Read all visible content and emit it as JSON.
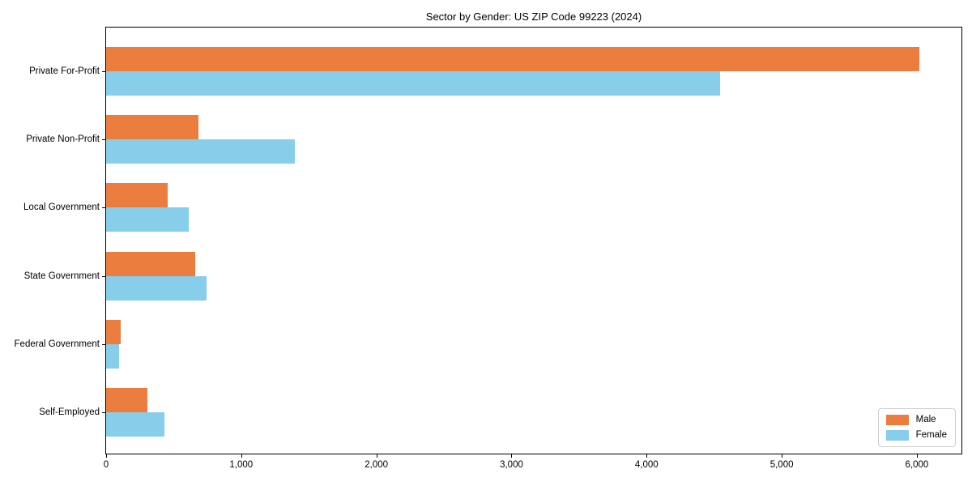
{
  "chart_data": {
    "type": "bar",
    "orientation": "horizontal",
    "title": "Sector by Gender: US ZIP Code 99223 (2024)",
    "categories": [
      "Private For-Profit",
      "Private Non-Profit",
      "Local Government",
      "State Government",
      "Federal Government",
      "Self-Employed"
    ],
    "series": [
      {
        "name": "Male",
        "color": "#EB7E3F",
        "values": [
          6020,
          685,
          455,
          660,
          110,
          305
        ]
      },
      {
        "name": "Female",
        "color": "#87CEEB",
        "values": [
          4545,
          1395,
          610,
          745,
          95,
          430
        ]
      }
    ],
    "xlabel": "",
    "ylabel": "",
    "xlim": [
      0,
      6330
    ],
    "xticks": [
      0,
      1000,
      2000,
      3000,
      4000,
      5000,
      6000
    ],
    "xtick_labels": [
      "0",
      "1,000",
      "2,000",
      "3,000",
      "4,000",
      "5,000",
      "6,000"
    ],
    "grid": false,
    "legend_position": "lower right",
    "axis_color": "#000000",
    "background_color": "#ffffff"
  }
}
